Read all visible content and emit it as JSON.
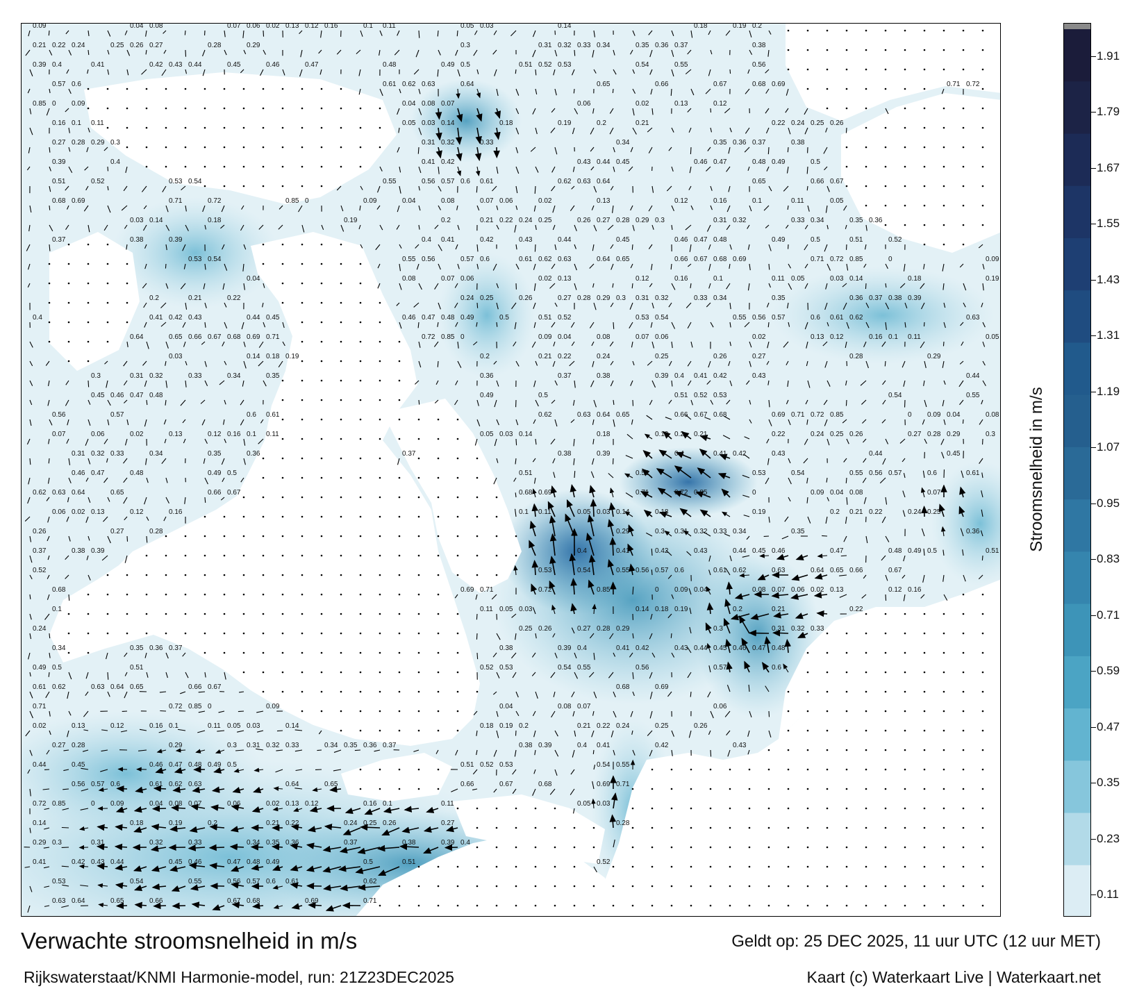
{
  "map": {
    "title": "Verwachte stroomsnelheid in m/s",
    "subtitle": "Rijkswaterstaat/KNMI Harmonie-model, run: 21Z23DEC2025",
    "valid_time": "Geldt op: 25 DEC 2025, 11 uur UTC (12 uur MET)",
    "credit": "Kaart (c) Waterkaart Live | Waterkaart.net",
    "land_color": "#ffffff",
    "sea_low_color": "#e3f1f6",
    "arrow_color": "#000000",
    "speed_labels": [
      "0.09",
      "0.04",
      "0.08",
      "0.07",
      "0.06",
      "0.02",
      "0.13",
      "0.12",
      "0.16",
      "0.1",
      "0.11",
      "0.05",
      "0.03",
      "0.14",
      "0.18",
      "0.19",
      "0.2",
      "0.21",
      "0.22",
      "0.24",
      "0.25",
      "0.26",
      "0.27",
      "0.28",
      "0.29",
      "0.3",
      "0.31",
      "0.32",
      "0.33",
      "0.34",
      "0.35",
      "0.36",
      "0.37",
      "0.38",
      "0.39",
      "0.4",
      "0.41",
      "0.42",
      "0.43",
      "0.44",
      "0.45",
      "0.46",
      "0.47",
      "0.48",
      "0.49",
      "0.5",
      "0.51",
      "0.52",
      "0.53",
      "0.54",
      "0.55",
      "0.56",
      "0.57",
      "0.6",
      "0.61",
      "0.62",
      "0.63",
      "0.64",
      "0.65",
      "0.66",
      "0.67",
      "0.68",
      "0.69",
      "0.71",
      "0.72",
      "0.85",
      "0"
    ]
  },
  "colorbar": {
    "label": "Stroomsnelheid in m/s",
    "ticks": [
      "1.91",
      "1.79",
      "1.67",
      "1.55",
      "1.43",
      "1.31",
      "1.19",
      "1.07",
      "0.95",
      "0.83",
      "0.71",
      "0.59",
      "0.47",
      "0.35",
      "0.23",
      "0.11"
    ],
    "colors": [
      "#1b1c3a",
      "#1c2346",
      "#1c2b56",
      "#1d3566",
      "#1e3f73",
      "#1f4c80",
      "#215a8c",
      "#255f8e",
      "#2a6a97",
      "#2f77a3",
      "#3585ae",
      "#3d94b8",
      "#4ba4c4",
      "#62b4d0",
      "#86c6dc",
      "#b2dae8",
      "#dcedf4"
    ]
  }
}
